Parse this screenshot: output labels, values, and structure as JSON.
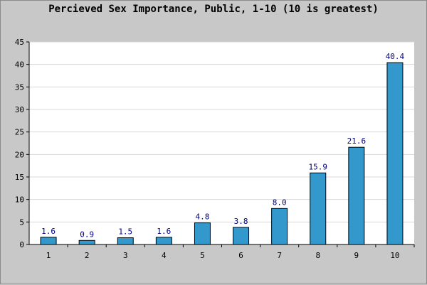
{
  "chart_data": {
    "type": "bar",
    "title": "Percieved Sex Importance, Public, 1-10 (10 is greatest)",
    "xlabel": "",
    "ylabel": "",
    "categories": [
      "1",
      "2",
      "3",
      "4",
      "5",
      "6",
      "7",
      "8",
      "9",
      "10"
    ],
    "values": [
      1.6,
      0.9,
      1.5,
      1.6,
      4.8,
      3.8,
      8.0,
      15.9,
      21.6,
      40.4
    ],
    "value_labels": [
      "1.6",
      "0.9",
      "1.5",
      "1.6",
      "4.8",
      "3.8",
      "8.0",
      "15.9",
      "21.6",
      "40.4"
    ],
    "ylim": [
      0,
      45
    ],
    "yticks": [
      0,
      5,
      10,
      15,
      20,
      25,
      30,
      35,
      40,
      45
    ],
    "grid": true,
    "legend": "none",
    "colors": {
      "bar": "#3399cc",
      "bar_border": "#000000",
      "value_label": "#000080",
      "plot_background": "#ffffff",
      "page_background": "#c8c8c8",
      "grid": "#d8d8d8"
    }
  }
}
